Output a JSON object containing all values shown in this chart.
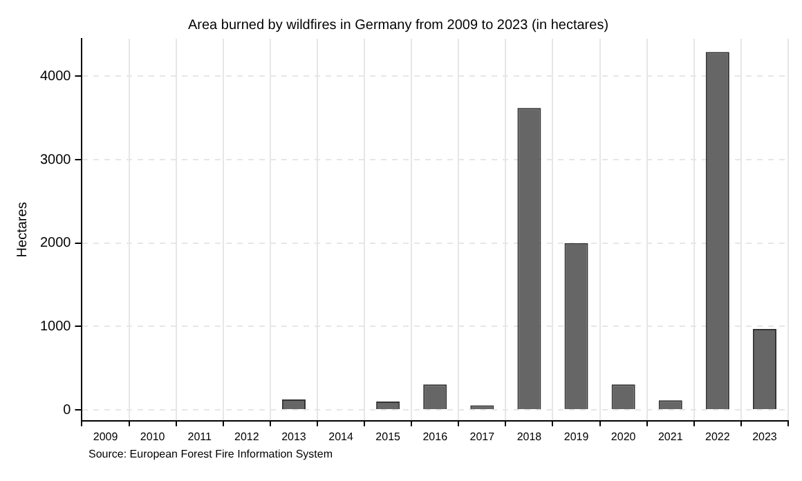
{
  "chart_data": {
    "type": "bar",
    "title": "Area burned by wildfires in Germany from 2009 to 2023 (in hectares)",
    "ylabel": "Hectares",
    "categories": [
      "2009",
      "2010",
      "2011",
      "2012",
      "2013",
      "2014",
      "2015",
      "2016",
      "2017",
      "2018",
      "2019",
      "2020",
      "2021",
      "2022",
      "2023"
    ],
    "values": [
      0,
      0,
      0,
      0,
      125,
      0,
      100,
      305,
      55,
      3620,
      2000,
      305,
      115,
      4290,
      970
    ],
    "color": "#666666",
    "ylim": [
      -130,
      4450
    ],
    "yticks": [
      0,
      1000,
      2000,
      3000,
      4000
    ],
    "grid": true,
    "annotations": [
      "Source: European Forest Fire Information System"
    ]
  }
}
